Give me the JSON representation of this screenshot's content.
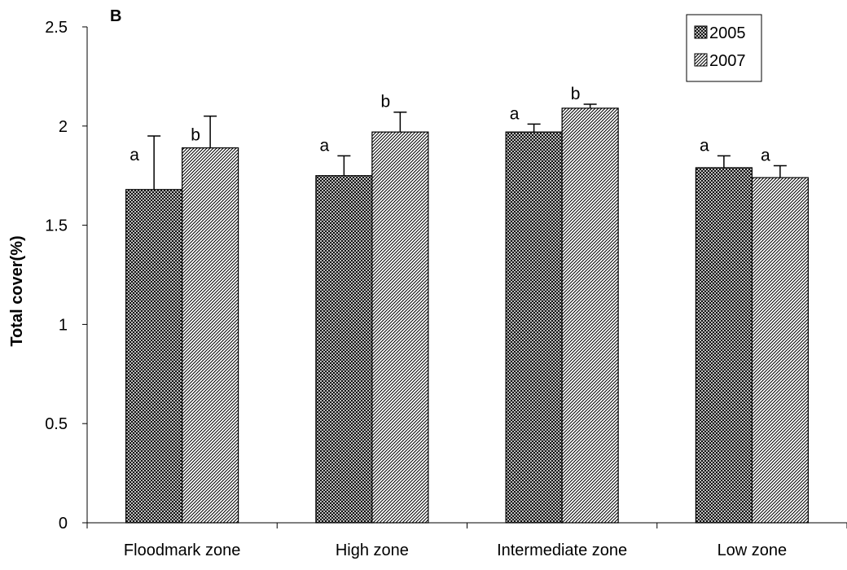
{
  "chart_data": {
    "type": "bar",
    "panel_label": "B",
    "title": "",
    "xlabel": "",
    "ylabel": "Total cover(%)",
    "ylim": [
      0,
      2.5
    ],
    "yticks": [
      "0",
      "0.5",
      "1",
      "1.5",
      "2",
      "2.5"
    ],
    "categories": [
      "Floodmark zone",
      "High zone",
      "Intermediate zone",
      "Low zone"
    ],
    "series": [
      {
        "name": "2005",
        "pattern": "crosshatch",
        "values": [
          1.68,
          1.75,
          1.97,
          1.79
        ],
        "error": [
          0.27,
          0.1,
          0.04,
          0.06
        ],
        "sig_labels": [
          "a",
          "a",
          "a",
          "a"
        ]
      },
      {
        "name": "2007",
        "pattern": "diagonal",
        "values": [
          1.89,
          1.97,
          2.09,
          1.74
        ],
        "error": [
          0.16,
          0.1,
          0.02,
          0.06
        ],
        "sig_labels": [
          "b",
          "b",
          "b",
          "a"
        ]
      }
    ],
    "legend_position": "top-right",
    "grid": false,
    "colors": {
      "axis": "#000000",
      "bar_stroke": "#000000",
      "bar_fill": "#ffffff"
    }
  }
}
